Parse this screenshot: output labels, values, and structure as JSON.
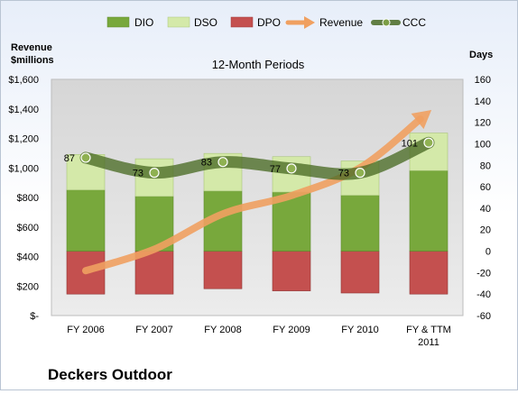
{
  "chart_data": {
    "type": "bar",
    "title": "12-Month Periods",
    "company": "Deckers Outdoor",
    "left_axis_label": "Revenue\n$millions",
    "right_axis_label": "Days",
    "categories": [
      "FY 2006",
      "FY 2007",
      "FY 2008",
      "FY 2009",
      "FY 2010",
      "FY & TTM\n2011"
    ],
    "left_axis": {
      "min": 0,
      "max": 1600,
      "step": 200,
      "tick_labels": [
        "$-",
        "$200",
        "$400",
        "$600",
        "$800",
        "$1,000",
        "$1,200",
        "$1,400",
        "$1,600"
      ]
    },
    "right_axis": {
      "min": -60,
      "max": 160,
      "step": 20,
      "tick_labels": [
        "-60",
        "-40",
        "-20",
        "0",
        "20",
        "40",
        "60",
        "80",
        "100",
        "120",
        "140",
        "160"
      ]
    },
    "series": [
      {
        "name": "DIO",
        "kind": "stacked-bar",
        "axis": "right",
        "color": "#78a83c",
        "values": [
          57,
          51,
          56,
          55,
          52,
          75
        ]
      },
      {
        "name": "DSO",
        "kind": "stacked-bar",
        "axis": "right",
        "color": "#d4e9a9",
        "values": [
          33,
          35,
          35,
          33,
          32,
          35
        ]
      },
      {
        "name": "DPO",
        "kind": "negative-bar",
        "axis": "right",
        "color": "#c4504f",
        "values": [
          -40,
          -40,
          -35,
          -37,
          -39,
          -40
        ]
      },
      {
        "name": "Revenue",
        "kind": "line",
        "axis": "left",
        "color": "#f0a060",
        "values": [
          304,
          449,
          689,
          813,
          1001,
          1377
        ]
      },
      {
        "name": "CCC",
        "kind": "line",
        "axis": "right",
        "color": "#4a6b25",
        "values": [
          87,
          73,
          83,
          77,
          73,
          101
        ]
      }
    ],
    "ccc_labels": [
      "87",
      "73",
      "83",
      "77",
      "73",
      "101"
    ],
    "legend_position": "top",
    "grid": false
  }
}
